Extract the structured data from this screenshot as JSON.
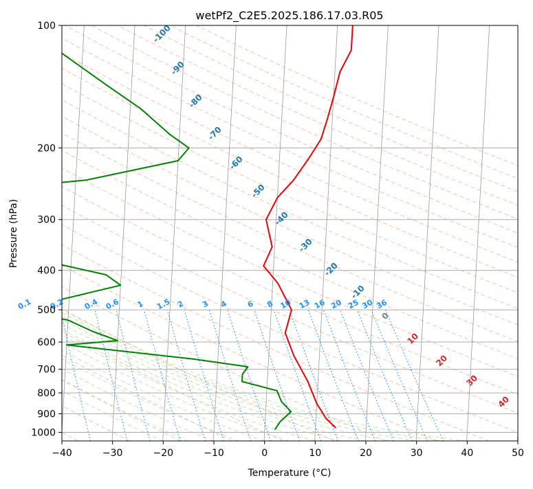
{
  "chart_data": {
    "type": "line",
    "subtype": "skew-t log-p",
    "title": "wetPf2_C2E5.2025.186.17.03.R05",
    "xlabel": "Temperature (°C)",
    "ylabel": "Pressure (hPa)",
    "xlim": [
      -40,
      50
    ],
    "ylim_hPa": [
      1050,
      100
    ],
    "y_scale": "log",
    "grid": true,
    "x_ticks": [
      -40,
      -30,
      -20,
      -10,
      0,
      10,
      20,
      30,
      40,
      50
    ],
    "x_tick_labels": [
      "−40",
      "−30",
      "−20",
      "−10",
      "0",
      "10",
      "20",
      "30",
      "40",
      "50"
    ],
    "y_ticks": [
      100,
      200,
      300,
      400,
      500,
      600,
      700,
      800,
      900,
      1000
    ],
    "y_tick_labels": [
      "100",
      "200",
      "300",
      "400",
      "500",
      "600",
      "700",
      "800",
      "900",
      "1000"
    ],
    "isotherm_labels": [
      "-100",
      "-90",
      "-80",
      "-70",
      "-60",
      "-50",
      "-40",
      "-30",
      "-20",
      "-10",
      "0",
      "10",
      "20",
      "30",
      "40"
    ],
    "mixing_ratio_labels": [
      "0.1",
      "0.2",
      "0.4",
      "0.6",
      "1",
      "1.5",
      "2",
      "3",
      "4",
      "6",
      "8",
      "10",
      "13",
      "16",
      "20",
      "25",
      "30",
      "36"
    ],
    "colors": {
      "temperature": "#ee0000",
      "dewpoint": "#008000",
      "isotherm": "#999999",
      "dry_adiabat": "#f4a582",
      "moist_adiabat": "#b2dfa0",
      "mixing_ratio": "#1e90ff",
      "isotherm_label": "#1f77b4",
      "warm_label": "#d62728",
      "zero_label": "#808080",
      "tan_curve": "#d8c0a0"
    },
    "series": [
      {
        "name": "temperature",
        "points": [
          [
            14,
            975
          ],
          [
            12,
            925
          ],
          [
            10,
            850
          ],
          [
            8,
            750
          ],
          [
            5,
            650
          ],
          [
            3,
            570
          ],
          [
            4,
            500
          ],
          [
            1,
            430
          ],
          [
            -2,
            390
          ],
          [
            -0.5,
            350
          ],
          [
            -2,
            300
          ],
          [
            0,
            265
          ],
          [
            3,
            240
          ],
          [
            6,
            210
          ],
          [
            8,
            190
          ],
          [
            9,
            170
          ],
          [
            10,
            150
          ],
          [
            11,
            130
          ],
          [
            13,
            115
          ],
          [
            13,
            100
          ]
        ]
      },
      {
        "name": "dewpoint",
        "points": [
          [
            2,
            985
          ],
          [
            3,
            940
          ],
          [
            5,
            890
          ],
          [
            3,
            840
          ],
          [
            2,
            790
          ],
          [
            -5,
            750
          ],
          [
            -5,
            720
          ],
          [
            -4,
            690
          ],
          [
            -15,
            660
          ],
          [
            -40,
            610
          ],
          [
            -30,
            595
          ],
          [
            -35,
            565
          ],
          [
            -40,
            530
          ],
          [
            -50,
            500
          ],
          [
            -30,
            435
          ],
          [
            -33,
            410
          ],
          [
            -45,
            380
          ],
          [
            -60,
            255
          ],
          [
            -38,
            240
          ],
          [
            -20,
            215
          ],
          [
            -18,
            200
          ],
          [
            -22,
            185
          ],
          [
            -28,
            160
          ],
          [
            -35,
            140
          ],
          [
            -45,
            115
          ],
          [
            -60,
            100
          ]
        ]
      }
    ]
  }
}
